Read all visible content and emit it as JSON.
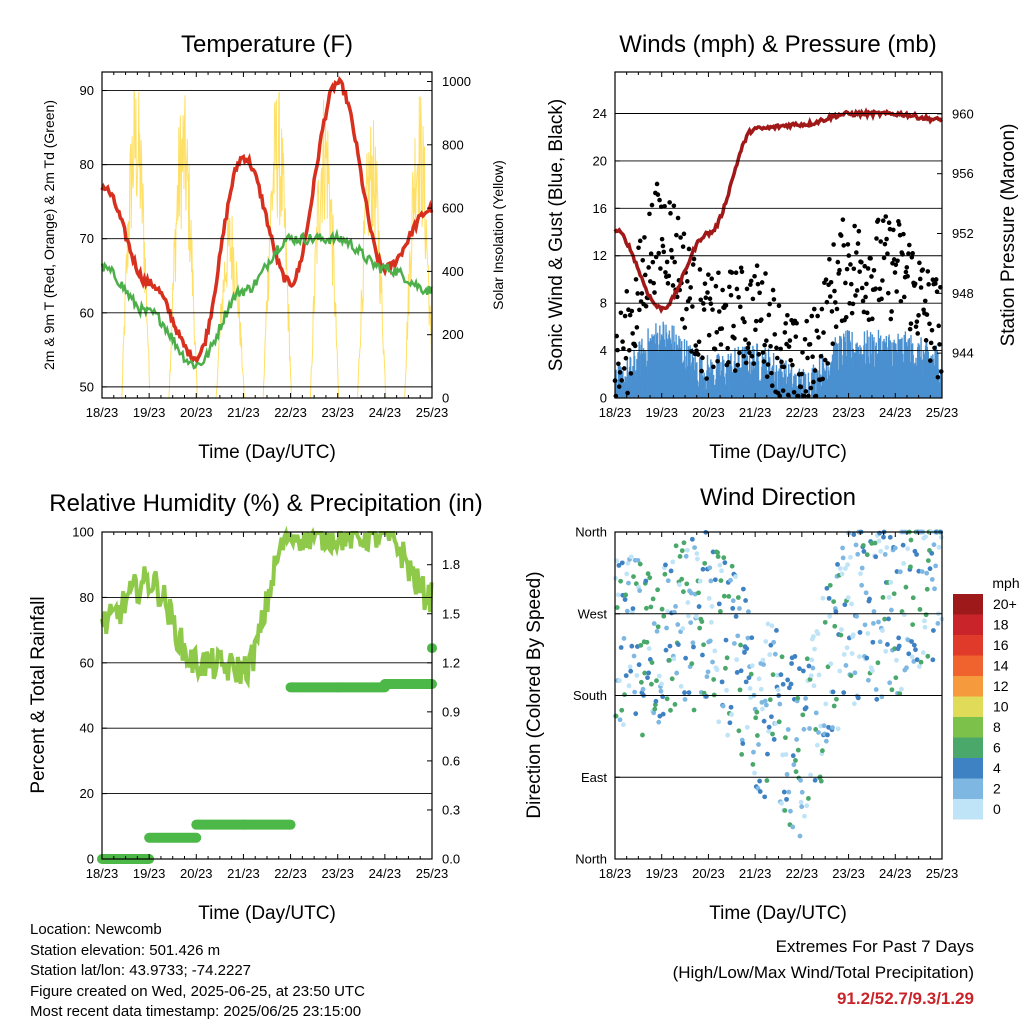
{
  "time_ticks": [
    "18/23",
    "19/23",
    "20/23",
    "21/23",
    "22/23",
    "23/23",
    "24/23",
    "25/23"
  ],
  "time_label": "Time (Day/UTC)",
  "colors": {
    "temp_2m": "#d7301f",
    "temp_9m": "#f5a623",
    "dewpoint": "#4daf4a",
    "solar": "#ffe066",
    "gust": "#000000",
    "wind": "#4a90d0",
    "pressure": "#a01818",
    "rh": "#8fc94a",
    "precip": "#4cb847",
    "extremes_values": "#c8242a"
  },
  "panels": {
    "temperature": {
      "title": "Temperature (F)",
      "ylabel_left": "2m & 9m T (Red, Orange) & 2m Td (Green)",
      "ylabel_right": "Solar Insolation (Yellow)",
      "left_ticks": [
        "50",
        "60",
        "70",
        "80",
        "90"
      ],
      "right_ticks": [
        "0",
        "200",
        "400",
        "600",
        "800",
        "1000"
      ]
    },
    "winds": {
      "title": "Winds (mph) & Pressure (mb)",
      "ylabel_left": "Sonic Wind & Gust (Blue, Black)",
      "ylabel_right": "Station Pressure (Maroon)",
      "left_ticks": [
        "0",
        "4",
        "8",
        "12",
        "16",
        "20",
        "24"
      ],
      "right_ticks": [
        "944",
        "948",
        "952",
        "956",
        "960"
      ]
    },
    "humidity": {
      "title": "Relative Humidity (%) & Precipitation (in)",
      "ylabel_left": "Percent & Total Rainfall",
      "left_ticks": [
        "0",
        "20",
        "40",
        "60",
        "80",
        "100"
      ],
      "right_ticks": [
        "0.0",
        "0.3",
        "0.6",
        "0.9",
        "1.2",
        "1.5",
        "1.8"
      ]
    },
    "direction": {
      "title": "Wind Direction",
      "ylabel_left": "Direction (Colored By Speed)",
      "left_ticks": [
        "North",
        "East",
        "South",
        "West",
        "North"
      ],
      "legend_title": "mph",
      "legend": [
        {
          "label": "20+",
          "color": "#9e1a1a"
        },
        {
          "label": "18",
          "color": "#c8242a"
        },
        {
          "label": "16",
          "color": "#e03a2a"
        },
        {
          "label": "14",
          "color": "#f0622e"
        },
        {
          "label": "12",
          "color": "#f59a3d"
        },
        {
          "label": "10",
          "color": "#e0dc5a"
        },
        {
          "label": "8",
          "color": "#7cc24a"
        },
        {
          "label": "6",
          "color": "#4aa96a"
        },
        {
          "label": "4",
          "color": "#3f82c4"
        },
        {
          "label": "2",
          "color": "#7eb8e2"
        },
        {
          "label": "0",
          "color": "#bfe3f7"
        }
      ]
    }
  },
  "chart_data": [
    {
      "type": "line",
      "title": "Temperature (F)",
      "xlabel": "Time (Day/UTC)",
      "ylabel": "2m & 9m T (Red, Orange) & 2m Td (Green)",
      "ylabel_right": "Solar Insolation (Yellow)",
      "x": [
        "18/23",
        "19/23",
        "20/23",
        "21/23",
        "22/23",
        "23/23",
        "24/23",
        "25/23"
      ],
      "ylim": [
        48.5,
        92.5
      ],
      "ylim_right": [
        0,
        1030
      ],
      "series": [
        {
          "name": "2m & 9m T (Red, Orange)",
          "values": [
            77,
            64,
            54,
            81,
            64,
            91,
            66,
            74
          ]
        },
        {
          "name": "2m Td (Green)",
          "values": [
            66,
            60,
            53,
            63,
            70,
            70,
            66,
            63
          ]
        },
        {
          "name": "Solar Insolation (Yellow)",
          "values": [
            650,
            0,
            0,
            0,
            0,
            0,
            0,
            0
          ]
        }
      ]
    },
    {
      "type": "scatter",
      "title": "Winds (mph) & Pressure (mb)",
      "xlabel": "Time (Day/UTC)",
      "ylabel": "Sonic Wind & Gust (Blue, Black)",
      "ylabel_right": "Station Pressure (Maroon)",
      "x": [
        "18/23",
        "19/23",
        "20/23",
        "21/23",
        "22/23",
        "23/23",
        "24/23",
        "25/23"
      ],
      "ylim": [
        0,
        27.5
      ],
      "ylim_right": [
        941.0,
        962.8
      ],
      "series": [
        {
          "name": "Gust (Black)",
          "values": [
            3,
            14,
            6,
            7,
            2,
            11,
            11,
            6
          ]
        },
        {
          "name": "Sonic Wind (Blue)",
          "values": [
            1,
            5,
            2,
            3,
            1,
            4,
            4,
            3
          ]
        },
        {
          "name": "Station Pressure (Maroon)",
          "values": [
            952.2,
            947.0,
            952.0,
            959.0,
            959.3,
            960.0,
            960.0,
            959.6
          ]
        }
      ]
    },
    {
      "type": "line",
      "title": "Relative Humidity (%) & Precipitation (in)",
      "xlabel": "Time (Day/UTC)",
      "ylabel": "Percent & Total Rainfall",
      "x": [
        "18/23",
        "19/23",
        "20/23",
        "21/23",
        "22/23",
        "23/23",
        "24/23",
        "25/23"
      ],
      "ylim": [
        0,
        100
      ],
      "ylim_right": [
        0,
        2.0
      ],
      "series": [
        {
          "name": "Relative Humidity (%)",
          "values": [
            72,
            85,
            60,
            58,
            99,
            99,
            99,
            80
          ]
        },
        {
          "name": "Precipitation (in)",
          "values": [
            0.0,
            0.13,
            0.21,
            0.21,
            1.05,
            1.05,
            1.07,
            1.29
          ]
        }
      ]
    },
    {
      "type": "scatter",
      "title": "Wind Direction",
      "xlabel": "Time (Day/UTC)",
      "ylabel": "Direction (Colored By Speed)",
      "x": [
        "18/23",
        "19/23",
        "20/23",
        "21/23",
        "22/23",
        "23/23",
        "24/23",
        "25/23"
      ],
      "ylim": [
        0,
        360
      ],
      "series": [
        {
          "name": "Direction (deg)",
          "values": [
            230,
            240,
            270,
            180,
            120,
            270,
            270,
            330
          ]
        }
      ]
    }
  ],
  "info": {
    "location": "Location: Newcomb",
    "elevation": "Station elevation: 501.426 m",
    "latlon": "Station lat/lon: 43.9733; -74.2227",
    "created": "Figure created on Wed, 2025-06-25, at 23:50 UTC",
    "recent": "Most recent data timestamp: 2025/06/25 23:15:00"
  },
  "extremes": {
    "title": "Extremes For Past 7 Days",
    "subtitle": "(High/Low/Max Wind/Total Precipitation)",
    "values": "91.2/52.7/9.3/1.29"
  }
}
